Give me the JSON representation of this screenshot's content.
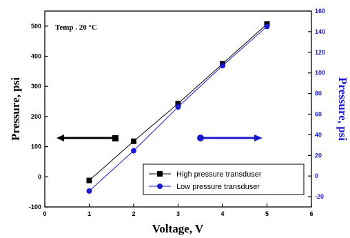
{
  "chart_data": {
    "type": "line",
    "annotation": "Temp . 20 °C",
    "xlabel": "Voltage, V",
    "ylabel": "Pressure, psi",
    "ylabel_right": "Pressure, psi",
    "xlim": [
      0,
      6
    ],
    "ylim": [
      -100,
      550
    ],
    "ylim_right": [
      -30,
      160
    ],
    "x_ticks": [
      0,
      1,
      2,
      3,
      4,
      5,
      6
    ],
    "y_ticks": [
      -100,
      0,
      100,
      200,
      300,
      400,
      500
    ],
    "y_ticks_right": [
      -20,
      0,
      20,
      40,
      60,
      80,
      100,
      120,
      140,
      160
    ],
    "legend_position": "bottom-right",
    "grid": false,
    "series": [
      {
        "name": "High pressure transduser",
        "axis": "left",
        "marker": "square",
        "color": "#000000",
        "x": [
          1,
          2,
          3,
          4,
          5
        ],
        "values": [
          -12,
          118,
          243,
          375,
          507
        ]
      },
      {
        "name": "Low pressure transduser",
        "axis": "right",
        "marker": "circle",
        "color": "#1a1acc",
        "x": [
          1,
          2,
          3,
          4,
          5
        ],
        "values": [
          -14.5,
          24.5,
          67,
          107,
          145
        ]
      }
    ]
  }
}
